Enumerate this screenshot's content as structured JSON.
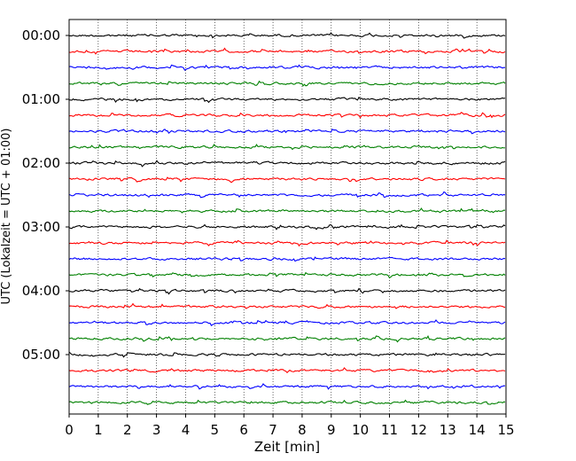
{
  "chart_data": {
    "type": "line",
    "xlabel": "Zeit  [min]",
    "ylabel": "UTC (Lokalzeit = UTC + 01:00)",
    "xlim": [
      0,
      15
    ],
    "x_ticks": [
      0,
      1,
      2,
      3,
      4,
      5,
      6,
      7,
      8,
      9,
      10,
      11,
      12,
      13,
      14,
      15
    ],
    "y_tick_labels": [
      "00:00",
      "01:00",
      "02:00",
      "03:00",
      "04:00",
      "05:00"
    ],
    "grid": "vertical-dotted",
    "trace_colors": [
      "#000000",
      "#ff0000",
      "#0000ff",
      "#008000"
    ],
    "traces": 24,
    "trace_interval_minutes": 15
  }
}
